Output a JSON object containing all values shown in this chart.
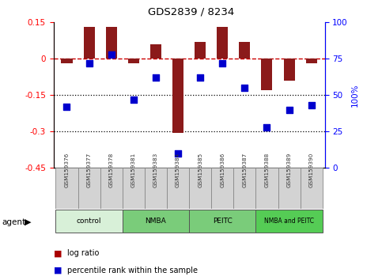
{
  "title": "GDS2839 / 8234",
  "samples": [
    "GSM159376",
    "GSM159377",
    "GSM159378",
    "GSM159381",
    "GSM159383",
    "GSM159384",
    "GSM159385",
    "GSM159386",
    "GSM159387",
    "GSM159388",
    "GSM159389",
    "GSM159390"
  ],
  "log_ratio": [
    -0.02,
    0.13,
    0.13,
    -0.02,
    0.06,
    -0.305,
    0.07,
    0.13,
    0.07,
    -0.13,
    -0.09,
    -0.02
  ],
  "percentile": [
    42,
    72,
    78,
    47,
    62,
    10,
    62,
    72,
    55,
    28,
    40,
    43
  ],
  "ylim_left": [
    -0.45,
    0.15
  ],
  "ylim_right": [
    0,
    100
  ],
  "yticks_left": [
    -0.45,
    -0.3,
    -0.15,
    0.0,
    0.15
  ],
  "yticks_right": [
    0,
    25,
    50,
    75,
    100
  ],
  "bar_color": "#8B1A1A",
  "dot_color": "#0000CD",
  "hline_color": "#CC0000",
  "dotline_color": "black",
  "agent_groups": [
    {
      "label": "control",
      "start": 0,
      "end": 3,
      "color": "#d8f0d8"
    },
    {
      "label": "NMBA",
      "start": 3,
      "end": 6,
      "color": "#7acc7a"
    },
    {
      "label": "PEITC",
      "start": 6,
      "end": 9,
      "color": "#7acc7a"
    },
    {
      "label": "NMBA and PEITC",
      "start": 9,
      "end": 12,
      "color": "#55cc55"
    }
  ],
  "legend_log_ratio_color": "#AA0000",
  "legend_percentile_color": "#0000CD",
  "agent_label": "agent",
  "bar_width": 0.5
}
